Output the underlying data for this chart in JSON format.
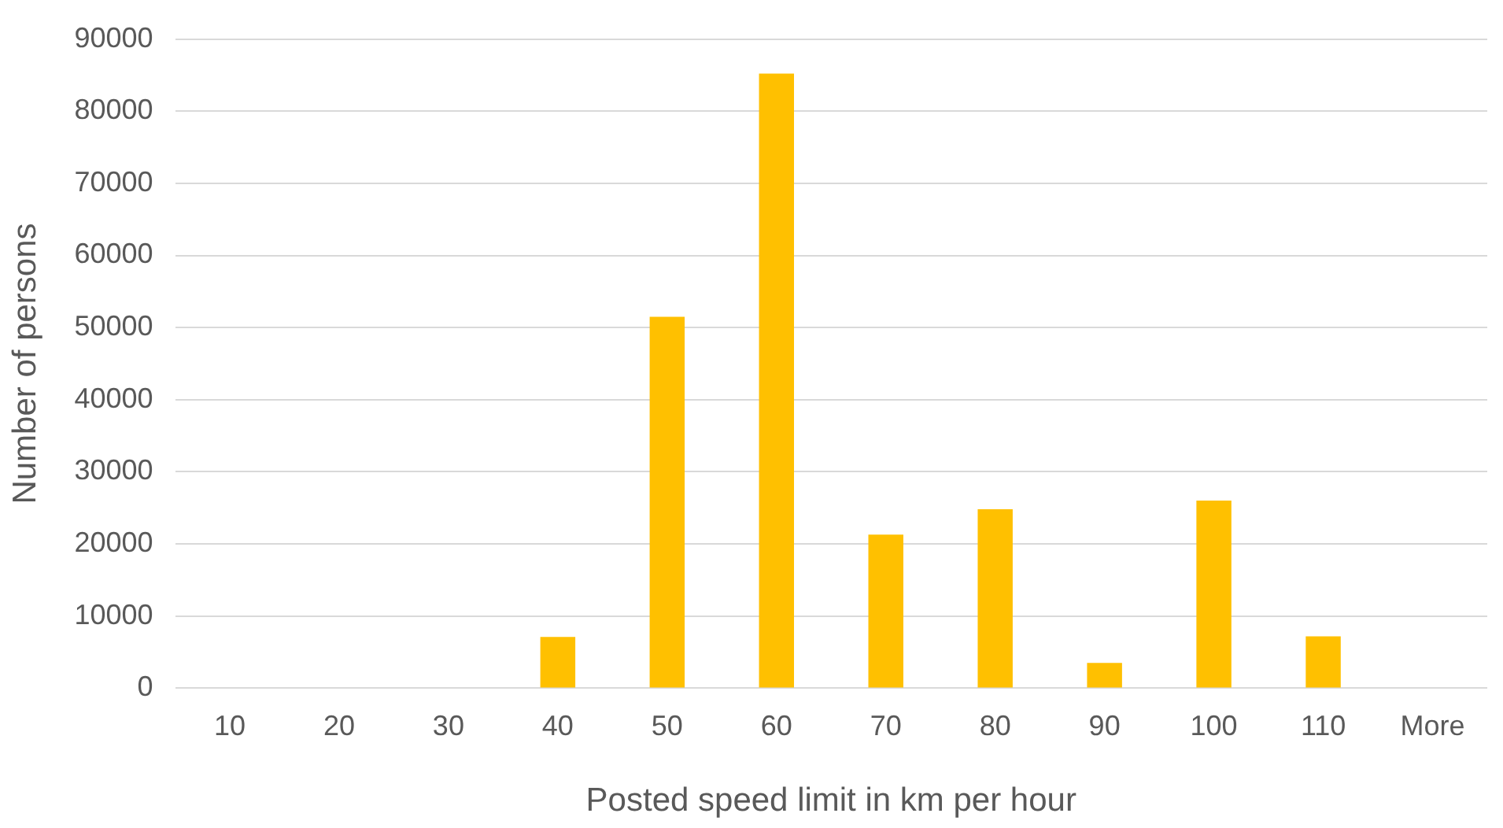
{
  "chart_data": {
    "type": "bar",
    "xlabel": "Posted speed limit in km per hour",
    "ylabel": "Number of persons",
    "categories": [
      "10",
      "20",
      "30",
      "40",
      "50",
      "60",
      "70",
      "80",
      "90",
      "100",
      "110",
      "More"
    ],
    "values": [
      0,
      0,
      0,
      7100,
      51500,
      85200,
      21300,
      24800,
      3500,
      26000,
      7200,
      0
    ],
    "color": "#ffc000",
    "ylim": [
      0,
      90000
    ],
    "yticks": [
      0,
      10000,
      20000,
      30000,
      40000,
      50000,
      60000,
      70000,
      80000,
      90000
    ],
    "grid": "y",
    "legend": false
  }
}
